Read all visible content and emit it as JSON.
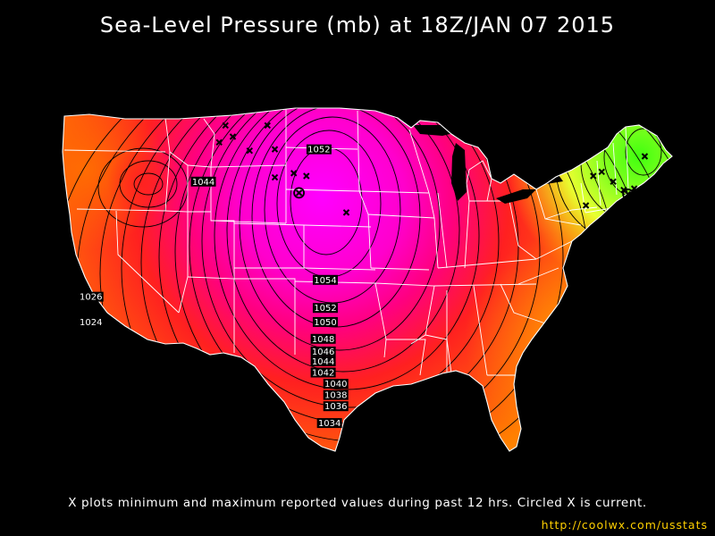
{
  "title": "Sea-Level Pressure (mb) at 18Z/JAN 07 2015",
  "caption": "X plots minimum and maximum reported values during past 12 hrs. Circled X is current.",
  "url": "http://coolwx.com/usstats",
  "colors": {
    "background": "#000000",
    "low_orange": "#ff8a00",
    "mid_red": "#ff2a20",
    "high_magenta": "#ff00ff",
    "ne_yellow": "#e0ff30",
    "ne_green": "#5cff10",
    "boundary": "#ffffff",
    "contour": "#000000",
    "url_color": "#ffd000"
  },
  "isobar_labels": [
    {
      "text": "1052",
      "lon": -100.6,
      "lat": 46.5
    },
    {
      "text": "1044",
      "lon": -111.6,
      "lat": 44.2
    },
    {
      "text": "1054",
      "lon": -100.0,
      "lat": 37.2
    },
    {
      "text": "1052",
      "lon": -100.0,
      "lat": 35.2
    },
    {
      "text": "1050",
      "lon": -100.0,
      "lat": 34.2
    },
    {
      "text": "1048",
      "lon": -100.2,
      "lat": 33.0
    },
    {
      "text": "1046",
      "lon": -100.2,
      "lat": 32.1
    },
    {
      "text": "1044",
      "lon": -100.2,
      "lat": 31.4
    },
    {
      "text": "1042",
      "lon": -100.2,
      "lat": 30.6
    },
    {
      "text": "1040",
      "lon": -99.0,
      "lat": 29.8
    },
    {
      "text": "1038",
      "lon": -99.0,
      "lat": 29.0
    },
    {
      "text": "1036",
      "lon": -99.0,
      "lat": 28.2
    },
    {
      "text": "1034",
      "lon": -99.6,
      "lat": 27.0
    },
    {
      "text": "1026",
      "lon": -122.3,
      "lat": 36.0
    },
    {
      "text": "1024",
      "lon": -122.3,
      "lat": 34.2
    }
  ],
  "station_marks": [
    {
      "kind": "x",
      "lon": -109.5,
      "lat": 48.2
    },
    {
      "kind": "x",
      "lon": -105.5,
      "lat": 48.2
    },
    {
      "kind": "x",
      "lon": -108.8,
      "lat": 47.4
    },
    {
      "kind": "x",
      "lon": -110.1,
      "lat": 47.0
    },
    {
      "kind": "x",
      "lon": -107.2,
      "lat": 46.4
    },
    {
      "kind": "x",
      "lon": -104.8,
      "lat": 46.5
    },
    {
      "kind": "x",
      "lon": -103.0,
      "lat": 44.8
    },
    {
      "kind": "x",
      "lon": -101.8,
      "lat": 44.6
    },
    {
      "kind": "x",
      "lon": -104.8,
      "lat": 44.5
    },
    {
      "kind": "circled-x",
      "lon": -102.5,
      "lat": 43.4
    },
    {
      "kind": "x",
      "lon": -98.0,
      "lat": 42.0
    },
    {
      "kind": "x",
      "lon": -74.5,
      "lat": 44.6
    },
    {
      "kind": "x",
      "lon": -73.7,
      "lat": 44.9
    },
    {
      "kind": "x",
      "lon": -72.6,
      "lat": 44.2
    },
    {
      "kind": "x",
      "lon": -71.6,
      "lat": 43.6
    },
    {
      "kind": "circled-x",
      "lon": -71.2,
      "lat": 43.3
    },
    {
      "kind": "x",
      "lon": -70.6,
      "lat": 43.7
    },
    {
      "kind": "x",
      "lon": -75.2,
      "lat": 42.5
    },
    {
      "kind": "x",
      "lon": -69.6,
      "lat": 46.0
    }
  ]
}
